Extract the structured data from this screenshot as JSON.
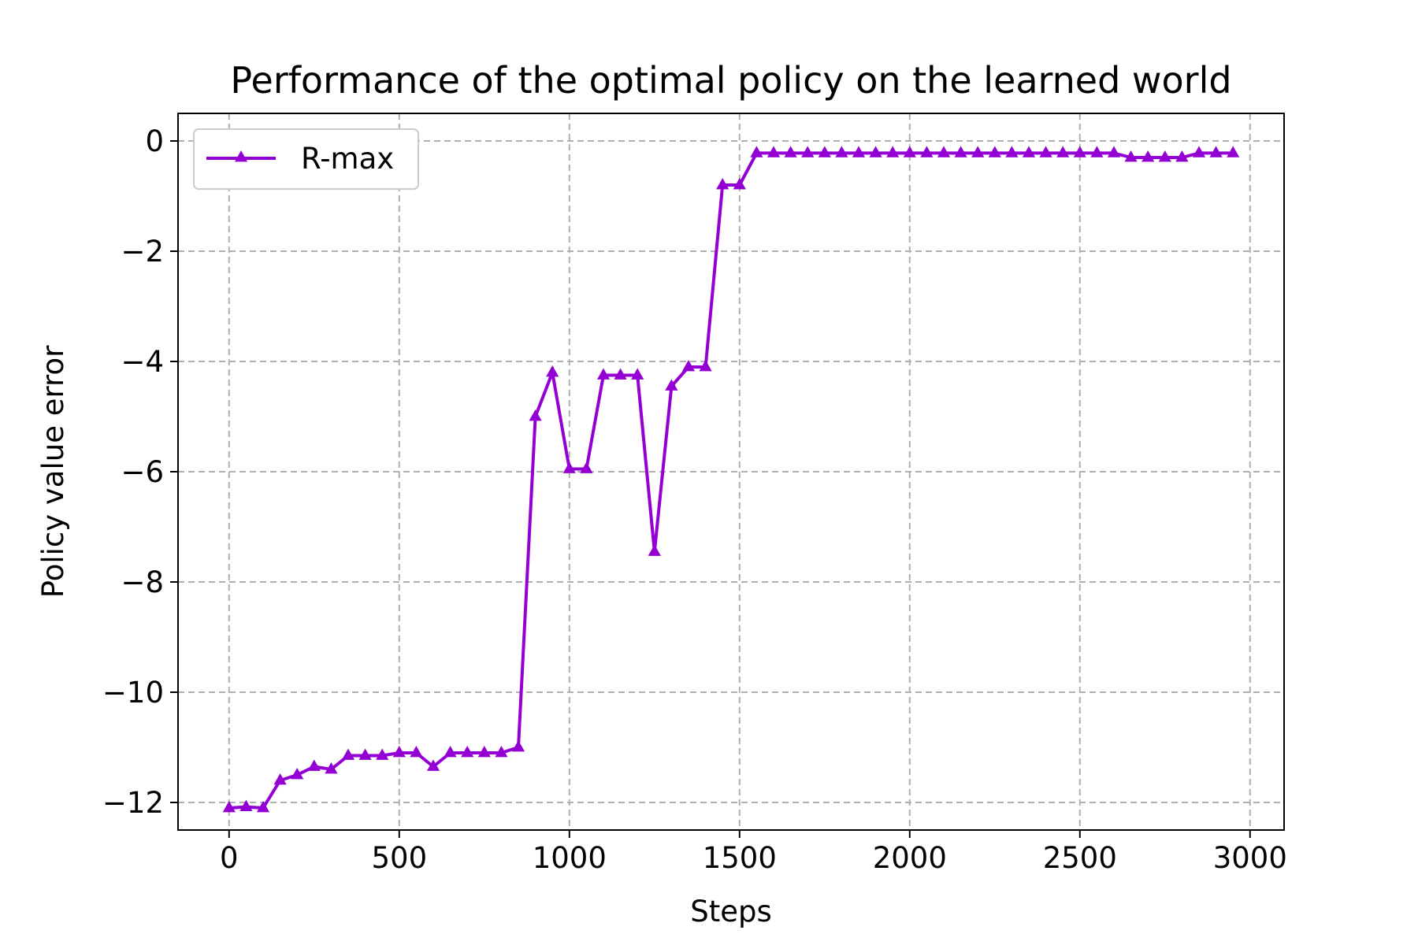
{
  "chart_data": {
    "type": "line",
    "title": "Performance of the optimal policy on the learned world",
    "xlabel": "Steps",
    "ylabel": "Policy value error",
    "xlim": [
      -150,
      3100
    ],
    "ylim": [
      -12.5,
      0.5
    ],
    "xticks": [
      0,
      500,
      1000,
      1500,
      2000,
      2500,
      3000
    ],
    "xtick_labels": [
      "0",
      "500",
      "1000",
      "1500",
      "2000",
      "2500",
      "3000"
    ],
    "yticks": [
      0,
      -2,
      -4,
      -6,
      -8,
      -10,
      -12
    ],
    "ytick_labels": [
      "0",
      "−2",
      "−4",
      "−6",
      "−8",
      "−10",
      "−12"
    ],
    "grid": true,
    "legend_position": "top-left",
    "series": [
      {
        "name": "R-max",
        "color": "#9400D3",
        "marker": "triangle",
        "x": [
          0,
          50,
          100,
          150,
          200,
          250,
          300,
          350,
          400,
          450,
          500,
          550,
          600,
          650,
          700,
          750,
          800,
          850,
          900,
          950,
          1000,
          1050,
          1100,
          1150,
          1200,
          1250,
          1300,
          1350,
          1400,
          1450,
          1500,
          1550,
          1600,
          1650,
          1700,
          1750,
          1800,
          1850,
          1900,
          1950,
          2000,
          2050,
          2100,
          2150,
          2200,
          2250,
          2300,
          2350,
          2400,
          2450,
          2500,
          2550,
          2600,
          2650,
          2700,
          2750,
          2800,
          2850,
          2900,
          2950
        ],
        "y": [
          -12.1,
          -12.08,
          -12.1,
          -11.6,
          -11.5,
          -11.35,
          -11.4,
          -11.15,
          -11.15,
          -11.15,
          -11.1,
          -11.1,
          -11.35,
          -11.1,
          -11.1,
          -11.1,
          -11.1,
          -11.0,
          -5.0,
          -4.2,
          -5.95,
          -5.95,
          -4.25,
          -4.25,
          -4.25,
          -7.45,
          -4.45,
          -4.1,
          -4.1,
          -0.8,
          -0.8,
          -0.22,
          -0.22,
          -0.22,
          -0.22,
          -0.22,
          -0.22,
          -0.22,
          -0.22,
          -0.22,
          -0.22,
          -0.22,
          -0.22,
          -0.22,
          -0.22,
          -0.22,
          -0.22,
          -0.22,
          -0.22,
          -0.22,
          -0.22,
          -0.22,
          -0.22,
          -0.3,
          -0.3,
          -0.3,
          -0.3,
          -0.22,
          -0.22,
          -0.22
        ]
      }
    ]
  }
}
